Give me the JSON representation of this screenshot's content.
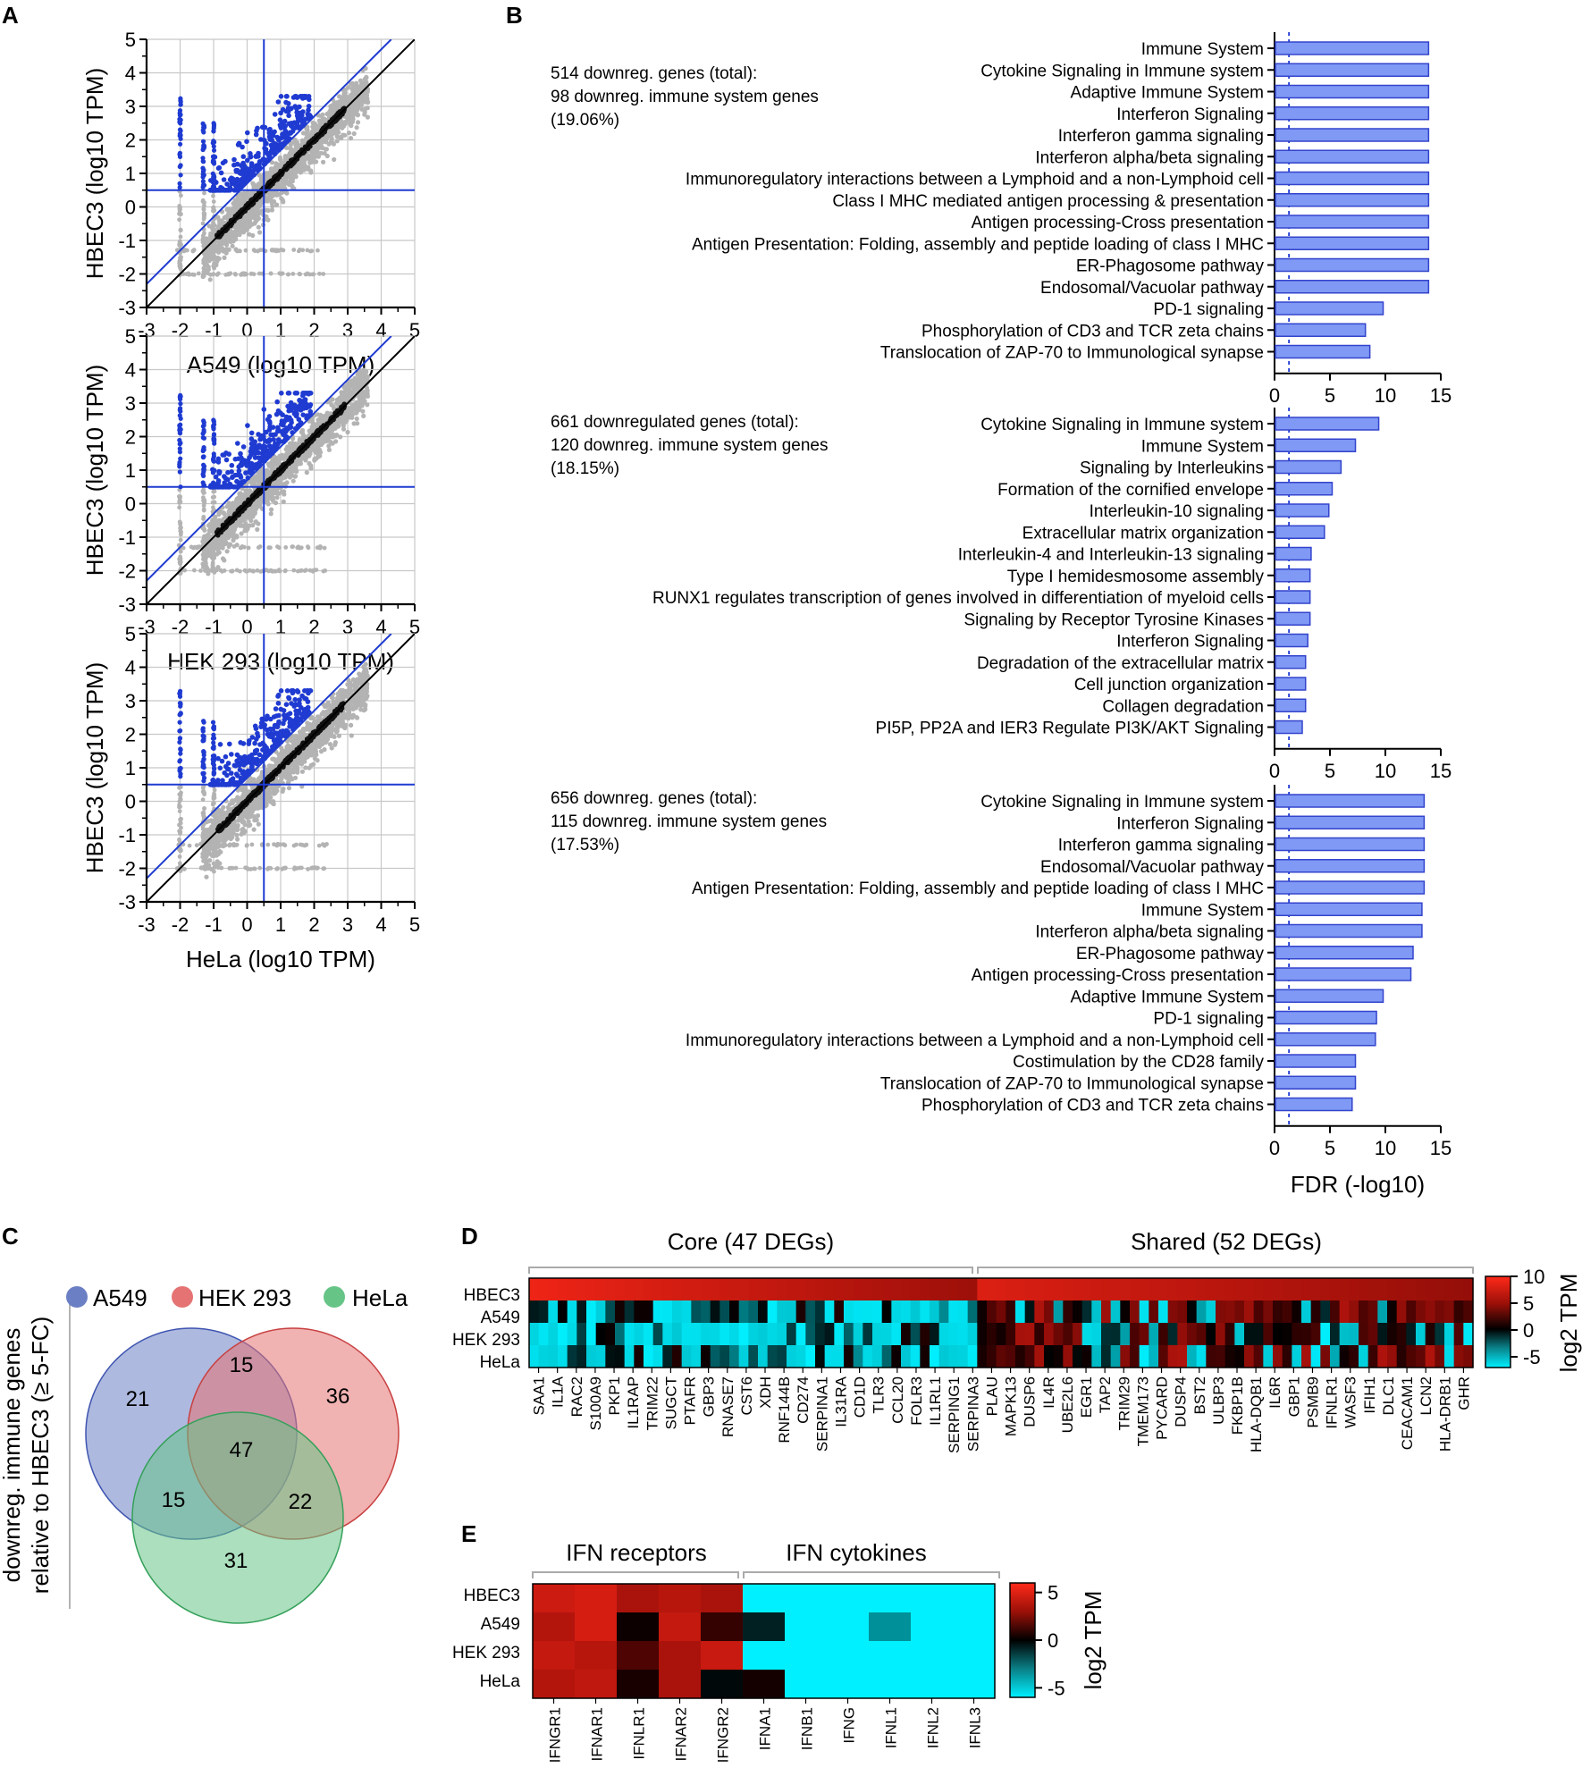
{
  "colors": {
    "blue": "#1f3bd1",
    "bar_fill": "#7f99f5",
    "bar_stroke": "#3344cc",
    "grey_points": "#b3b3b3",
    "red_text": "#e6211f",
    "blue_text": "#1f3ba8",
    "venn_a549": "#6b7fc4",
    "venn_hek": "#e57373",
    "venn_hela": "#66c487",
    "hm_high": "#ff2a1a",
    "hm_mid": "#000000",
    "hm_low": "#00f0ff"
  },
  "panel_letters": {
    "a": "A",
    "b": "B",
    "c": "C",
    "d": "D",
    "e": "E"
  },
  "chart_data": [
    {
      "id": "scatter_a549",
      "type": "scatter",
      "xlabel": "A549 (log10 TPM)",
      "ylabel": "HBEC3 (log10 TPM)",
      "xlim": [
        -3,
        5
      ],
      "ylim": [
        -3,
        5
      ],
      "ticks": [
        -3,
        -2,
        -1,
        0,
        1,
        2,
        3,
        4,
        5
      ],
      "threshold_x": 0.5,
      "threshold_y": 0.5,
      "fold_change_offset": 0.7
    },
    {
      "id": "scatter_hek",
      "type": "scatter",
      "xlabel": "HEK 293 (log10 TPM)",
      "ylabel": "HBEC3 (log10 TPM)",
      "xlim": [
        -3,
        5
      ],
      "ylim": [
        -3,
        5
      ],
      "ticks": [
        -3,
        -2,
        -1,
        0,
        1,
        2,
        3,
        4,
        5
      ],
      "threshold_x": 0.5,
      "threshold_y": 0.5,
      "fold_change_offset": 0.7
    },
    {
      "id": "scatter_hela",
      "type": "scatter",
      "xlabel": "HeLa (log10 TPM)",
      "ylabel": "HBEC3 (log10 TPM)",
      "xlim": [
        -3,
        5
      ],
      "ylim": [
        -3,
        5
      ],
      "ticks": [
        -3,
        -2,
        -1,
        0,
        1,
        2,
        3,
        4,
        5
      ],
      "threshold_x": 0.5,
      "threshold_y": 0.5,
      "fold_change_offset": 0.7
    },
    {
      "id": "bar_a549",
      "type": "bar",
      "orientation": "horizontal",
      "xlim": [
        0,
        15
      ],
      "xticks": [
        0,
        5,
        10,
        15
      ],
      "threshold": 1.3,
      "note_total": "514 downreg. genes (total):",
      "note_immune": "98 downreg. immune system genes",
      "note_pct": "(19.06%)",
      "categories": [
        "Immune System",
        "Cytokine Signaling in Immune system",
        "Adaptive Immune System",
        "Interferon Signaling",
        "Interferon gamma signaling",
        "Interferon alpha/beta signaling",
        "Immunoregulatory interactions between a Lymphoid and a non-Lymphoid cell",
        "Class I MHC mediated antigen processing & presentation",
        "Antigen processing-Cross presentation",
        "Antigen Presentation: Folding, assembly and peptide loading of class I MHC",
        "ER-Phagosome pathway",
        "Endosomal/Vacuolar pathway",
        "PD-1 signaling",
        "Phosphorylation of CD3 and TCR zeta chains",
        "Translocation of ZAP-70 to Immunological synapse"
      ],
      "values": [
        13.9,
        13.9,
        13.9,
        13.9,
        13.9,
        13.9,
        13.9,
        13.9,
        13.9,
        13.9,
        13.9,
        13.9,
        9.8,
        8.2,
        8.6
      ],
      "highlight_index": 0
    },
    {
      "id": "bar_hek",
      "type": "bar",
      "orientation": "horizontal",
      "xlim": [
        0,
        15
      ],
      "xticks": [
        0,
        5,
        10,
        15
      ],
      "threshold": 1.3,
      "note_total": "661 downregulated genes (total):",
      "note_immune": "120 downreg. immune system genes",
      "note_pct": "(18.15%)",
      "categories": [
        "Cytokine Signaling in Immune system",
        "Immune System",
        "Signaling by Interleukins",
        "Formation of the cornified envelope",
        "Interleukin-10 signaling",
        "Extracellular matrix organization",
        "Interleukin-4 and Interleukin-13 signaling",
        "Type I hemidesmosome assembly",
        "RUNX1 regulates transcription of genes involved in differentiation of myeloid cells",
        "Signaling by Receptor Tyrosine Kinases",
        "Interferon Signaling",
        "Degradation of the extracellular matrix",
        "Cell junction organization",
        "Collagen degradation",
        "PI5P, PP2A and IER3 Regulate PI3K/AKT Signaling"
      ],
      "values": [
        9.4,
        7.3,
        6.0,
        5.2,
        4.9,
        4.5,
        3.3,
        3.2,
        3.2,
        3.2,
        3.0,
        2.8,
        2.8,
        2.8,
        2.5
      ],
      "highlight_index": 1
    },
    {
      "id": "bar_hela",
      "type": "bar",
      "orientation": "horizontal",
      "xlim": [
        0,
        15
      ],
      "xticks": [
        0,
        5,
        10,
        15
      ],
      "threshold": 1.3,
      "xlabel": "FDR (-log10)",
      "note_total": "656 downreg. genes (total):",
      "note_immune": "115 downreg. immune system genes",
      "note_pct": "(17.53%)",
      "categories": [
        "Cytokine Signaling in Immune system",
        "Interferon Signaling",
        "Interferon gamma signaling",
        "Endosomal/Vacuolar pathway",
        "Antigen Presentation: Folding, assembly and peptide loading of class I MHC",
        "Immune System",
        "Interferon alpha/beta signaling",
        "ER-Phagosome pathway",
        "Antigen processing-Cross presentation",
        "Adaptive Immune System",
        "PD-1 signaling",
        "Immunoregulatory interactions between a Lymphoid and a non-Lymphoid cell",
        "Costimulation by the CD28 family",
        "Translocation of ZAP-70 to Immunological synapse",
        "Phosphorylation of CD3 and TCR zeta chains"
      ],
      "values": [
        13.5,
        13.5,
        13.5,
        13.5,
        13.5,
        13.3,
        13.3,
        12.5,
        12.3,
        9.8,
        9.2,
        9.1,
        7.3,
        7.3,
        7.0
      ],
      "highlight_index": 5
    },
    {
      "id": "venn",
      "type": "venn",
      "ylabel_line1": "downreg. immune genes",
      "ylabel_line2": "relative to HBEC3 (≥ 5-FC)",
      "sets": [
        "A549",
        "HEK 293",
        "HeLa"
      ],
      "regions": {
        "a549_only": 21,
        "hek_only": 36,
        "hela_only": 31,
        "a549_hek": 15,
        "a549_hela": 15,
        "hek_hela": 22,
        "all": 47
      }
    },
    {
      "id": "heatmap_d",
      "type": "heatmap",
      "rows": [
        "HBEC3",
        "A549",
        "HEK 293",
        "HeLa"
      ],
      "groups": [
        {
          "label": "Core (47 DEGs)",
          "n": 47
        },
        {
          "label": "Shared (52 DEGs)",
          "n": 52
        }
      ],
      "gene_labels": [
        "SAA1",
        "IL1A",
        "RAC2",
        "S100A9",
        "PKP1",
        "IL1RAP",
        "TRIM22",
        "SUGCT",
        "PTAFR",
        "GBP3",
        "RNASE7",
        "CST6",
        "XDH",
        "RNF144B",
        "CD274",
        "SERPINA1",
        "IL31RA",
        "CD1D",
        "TLR3",
        "CCL20",
        "FOLR3",
        "IL1RL1",
        "SERPING1",
        "SERPINA3",
        "PLAU",
        "MAPK13",
        "DUSP6",
        "IL4R",
        "UBE2L6",
        "EGR1",
        "TAP2",
        "TRIM29",
        "TMEM173",
        "PYCARD",
        "DUSP4",
        "BST2",
        "ULBP3",
        "FKBP1B",
        "HLA-DQB1",
        "IL6R",
        "GBP1",
        "PSMB9",
        "IFNLR1",
        "WASF3",
        "IFIH1",
        "DLC1",
        "CEACAM1",
        "LCN2",
        "HLA-DRB1",
        "GHR"
      ],
      "colorbar_label": "log2 TPM",
      "colorbar_ticks": [
        10,
        5,
        0,
        -5
      ],
      "range": [
        -7,
        10
      ]
    },
    {
      "id": "heatmap_e",
      "type": "heatmap",
      "rows": [
        "HBEC3",
        "A549",
        "HEK 293",
        "HeLa"
      ],
      "groups": [
        {
          "label": "IFN receptors",
          "n": 5
        },
        {
          "label": "IFN cytokines",
          "n": 6
        }
      ],
      "columns": [
        "IFNGR1",
        "IFNAR1",
        "IFNLR1",
        "IFNAR2",
        "IFNGR2",
        "IFNA1",
        "IFNB1",
        "IFNG",
        "IFNL1",
        "IFNL2",
        "IFNL3"
      ],
      "values": [
        [
          4.8,
          5.0,
          4.0,
          4.3,
          4.0,
          -6,
          -6,
          -6,
          -6,
          -6,
          -6
        ],
        [
          4.2,
          5.0,
          0.3,
          4.6,
          1.2,
          -0.8,
          -6,
          -6,
          -3.6,
          -6,
          -6
        ],
        [
          4.6,
          4.3,
          1.8,
          4.0,
          4.7,
          -6,
          -6,
          -6,
          -6,
          -6,
          -6
        ],
        [
          4.2,
          4.5,
          0.6,
          4.0,
          -0.2,
          0.5,
          -6,
          -6,
          -6,
          -6,
          -6
        ]
      ],
      "colorbar_label": "log2 TPM",
      "colorbar_ticks": [
        5,
        0,
        -5
      ],
      "range": [
        -6,
        6
      ]
    }
  ]
}
